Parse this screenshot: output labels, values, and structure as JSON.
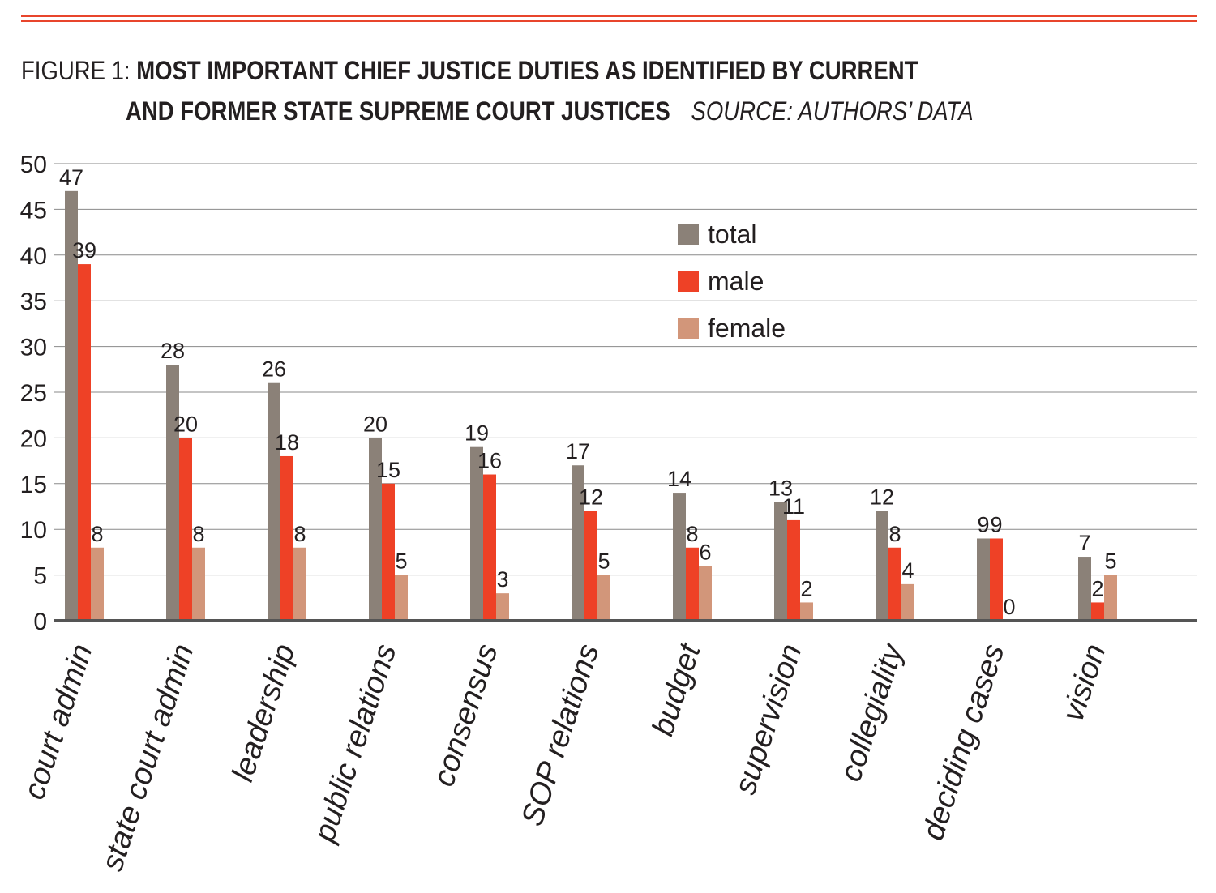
{
  "header": {
    "title_prefix": "FIGURE 1: ",
    "title_line1": "MOST IMPORTANT CHIEF JUSTICE DUTIES AS IDENTIFIED BY CURRENT",
    "title_line2": "AND FORMER STATE SUPREME COURT JUSTICES",
    "source": "SOURCE: AUTHORS’ DATA"
  },
  "colors": {
    "accent_rule": "#e8452c",
    "total": "#8b8178",
    "male": "#ee4126",
    "female": "#d2967a",
    "grid": "#8a8a8a",
    "axis": "#555555"
  },
  "chart_data": {
    "type": "bar",
    "title": "MOST IMPORTANT CHIEF JUSTICE DUTIES AS IDENTIFIED BY CURRENT AND FORMER STATE SUPREME COURT JUSTICES",
    "xlabel": "",
    "ylabel": "",
    "ylim": [
      0,
      50
    ],
    "yticks": [
      0,
      5,
      10,
      15,
      20,
      25,
      30,
      35,
      40,
      45,
      50
    ],
    "grid": true,
    "legend_position": "top-center",
    "categories": [
      "court admin",
      "state court admin",
      "leadership",
      "public relations",
      "consensus",
      "SOP relations",
      "budget",
      "supervision",
      "collegiality",
      "deciding cases",
      "vision"
    ],
    "series": [
      {
        "name": "total",
        "values": [
          47,
          28,
          26,
          20,
          19,
          17,
          14,
          13,
          12,
          9,
          7
        ],
        "color": "#8b8178"
      },
      {
        "name": "male",
        "values": [
          39,
          20,
          18,
          15,
          16,
          12,
          8,
          11,
          8,
          9,
          2
        ],
        "color": "#ee4126"
      },
      {
        "name": "female",
        "values": [
          8,
          8,
          8,
          5,
          3,
          5,
          6,
          2,
          4,
          0,
          5
        ],
        "color": "#d2967a"
      }
    ]
  }
}
